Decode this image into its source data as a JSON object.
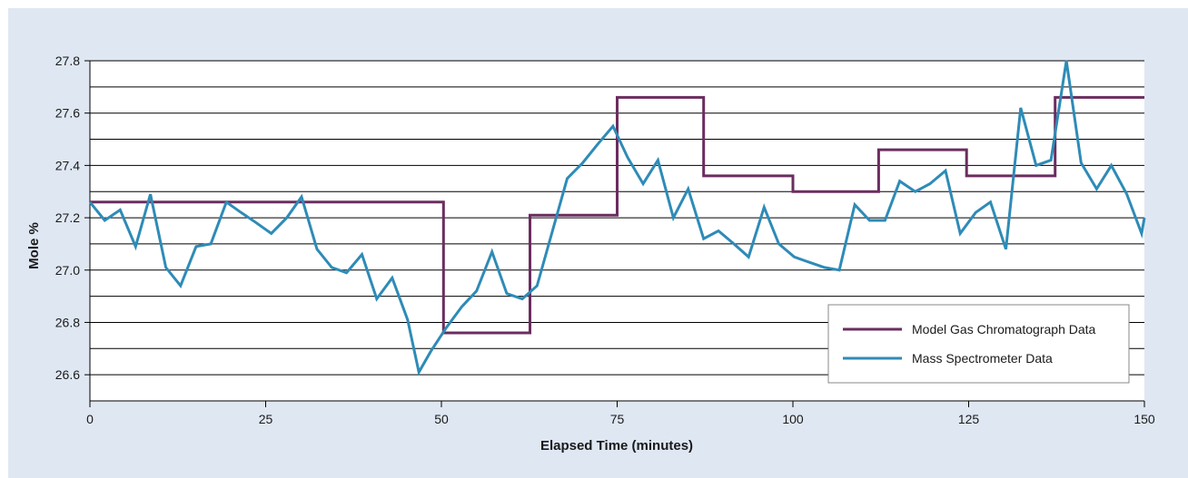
{
  "chart_data": {
    "type": "line",
    "title": "",
    "xlabel": "Elapsed Time (minutes)",
    "ylabel": "Mole %",
    "xlim": [
      0,
      150
    ],
    "ylim": [
      26.5,
      27.8
    ],
    "x_ticks": [
      0,
      25,
      50,
      75,
      100,
      125,
      150
    ],
    "y_ticks": [
      26.6,
      26.8,
      27.0,
      27.2,
      27.4,
      27.6,
      27.8
    ],
    "y_tick_labels": [
      "26.6",
      "26.8",
      "27.0",
      "27.2",
      "27.4",
      "27.6",
      "27.8"
    ],
    "grid": "horizontal",
    "legend_position": "bottom-right",
    "series": [
      {
        "name": "Model Gas Chromatograph Data",
        "color": "#6b2d5f",
        "style": "step",
        "points": [
          [
            0,
            27.26
          ],
          [
            50.3,
            27.26
          ],
          [
            50.3,
            26.76
          ],
          [
            62.6,
            26.76
          ],
          [
            62.6,
            27.21
          ],
          [
            75.0,
            27.21
          ],
          [
            75.0,
            27.66
          ],
          [
            87.3,
            27.66
          ],
          [
            87.3,
            27.36
          ],
          [
            100,
            27.36
          ],
          [
            100,
            27.3
          ],
          [
            112.2,
            27.3
          ],
          [
            112.2,
            27.46
          ],
          [
            124.7,
            27.46
          ],
          [
            124.7,
            27.36
          ],
          [
            137.3,
            27.36
          ],
          [
            137.3,
            27.66
          ],
          [
            150,
            27.66
          ]
        ]
      },
      {
        "name": "Mass Spectrometer Data",
        "color": "#2e8bb7",
        "style": "line",
        "points": [
          [
            0,
            27.26
          ],
          [
            2.1,
            27.19
          ],
          [
            4.3,
            27.23
          ],
          [
            6.5,
            27.09
          ],
          [
            8.6,
            27.29
          ],
          [
            10.8,
            27.01
          ],
          [
            12.9,
            26.94
          ],
          [
            15.1,
            27.09
          ],
          [
            17.2,
            27.1
          ],
          [
            19.4,
            27.26
          ],
          [
            21.5,
            27.22
          ],
          [
            23.7,
            27.18
          ],
          [
            25.8,
            27.14
          ],
          [
            28.0,
            27.2
          ],
          [
            30.1,
            27.28
          ],
          [
            32.3,
            27.08
          ],
          [
            34.4,
            27.01
          ],
          [
            36.5,
            26.99
          ],
          [
            38.7,
            27.06
          ],
          [
            40.8,
            26.89
          ],
          [
            43.0,
            26.97
          ],
          [
            45.2,
            26.81
          ],
          [
            46.8,
            26.61
          ],
          [
            48.5,
            26.69
          ],
          [
            50.7,
            26.78
          ],
          [
            52.9,
            26.86
          ],
          [
            55.0,
            26.92
          ],
          [
            57.2,
            27.07
          ],
          [
            59.3,
            26.91
          ],
          [
            61.5,
            26.89
          ],
          [
            63.6,
            26.94
          ],
          [
            65.8,
            27.15
          ],
          [
            67.9,
            27.35
          ],
          [
            70.1,
            27.41
          ],
          [
            72.2,
            27.48
          ],
          [
            74.4,
            27.55
          ],
          [
            76.5,
            27.43
          ],
          [
            78.7,
            27.33
          ],
          [
            80.8,
            27.42
          ],
          [
            83.0,
            27.2
          ],
          [
            85.1,
            27.31
          ],
          [
            87.3,
            27.12
          ],
          [
            89.4,
            27.15
          ],
          [
            91.6,
            27.1
          ],
          [
            93.7,
            27.05
          ],
          [
            95.9,
            27.24
          ],
          [
            98.0,
            27.1
          ],
          [
            100.2,
            27.05
          ],
          [
            102.3,
            27.03
          ],
          [
            104.5,
            27.01
          ],
          [
            106.6,
            27.0
          ],
          [
            108.8,
            27.25
          ],
          [
            110.9,
            27.19
          ],
          [
            113.1,
            27.19
          ],
          [
            115.2,
            27.34
          ],
          [
            117.4,
            27.3
          ],
          [
            119.5,
            27.33
          ],
          [
            121.7,
            27.38
          ],
          [
            123.8,
            27.14
          ],
          [
            126.0,
            27.22
          ],
          [
            128.1,
            27.26
          ],
          [
            130.3,
            27.08
          ],
          [
            132.4,
            27.62
          ],
          [
            134.6,
            27.4
          ],
          [
            136.7,
            27.42
          ],
          [
            138.9,
            27.8
          ],
          [
            141.0,
            27.41
          ],
          [
            143.2,
            27.31
          ],
          [
            145.3,
            27.4
          ],
          [
            147.5,
            27.29
          ],
          [
            149.6,
            27.14
          ],
          [
            150,
            27.2
          ]
        ]
      }
    ]
  }
}
